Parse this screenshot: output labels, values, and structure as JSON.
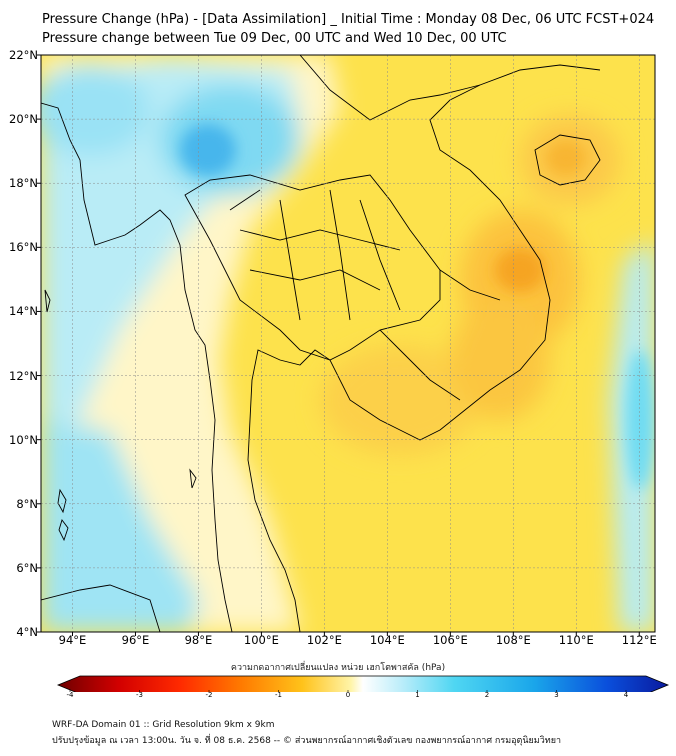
{
  "title": {
    "line1": "Pressure Change (hPa) - [Data Assimilation] _ Initial Time : Monday 08 Dec, 06 UTC FCST+024",
    "line2": "Pressure change between Tue 09 Dec, 00 UTC and Wed 10 Dec, 00 UTC"
  },
  "map": {
    "lon_range": [
      93,
      112.5
    ],
    "lat_range": [
      4,
      22
    ],
    "lat_labels": [
      "22°N",
      "20°N",
      "18°N",
      "16°N",
      "14°N",
      "12°N",
      "10°N",
      "8°N",
      "6°N",
      "4°N"
    ],
    "lon_labels": [
      "94°E",
      "96°E",
      "98°E",
      "100°E",
      "102°E",
      "104°E",
      "106°E",
      "108°E",
      "110°E",
      "112°E"
    ],
    "grid": true,
    "colors": {
      "background": "#fde14a",
      "cyan": "#56d9f0",
      "blue": "#3fa9e8",
      "orange": "#f59a1a",
      "coast": "#000000"
    }
  },
  "colorbar": {
    "label": "ความกดอากาศเปลี่ยนแปลง หน่วย เฮกโตพาสคัล (hPa)",
    "ticks": [
      "-4",
      "-3",
      "-2",
      "-1",
      "0",
      "1",
      "2",
      "3",
      "4"
    ],
    "range": [
      -4,
      4
    ]
  },
  "footer": {
    "line1": "WRF-DA Domain 01 :: Grid Resolution 9km x 9km",
    "line2": "ปรับปรุงข้อมูล ณ เวลา 13:00น. วัน จ. ที่ 08 ธ.ค. 2568 -- © ส่วนพยากรณ์อากาศเชิงตัวเลข กองพยากรณ์อากาศ กรมอุตุนิยมวิทยา"
  }
}
